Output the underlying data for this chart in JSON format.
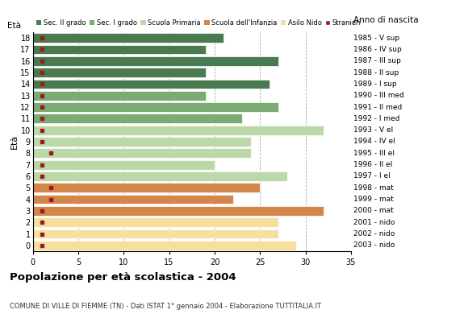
{
  "ages": [
    18,
    17,
    16,
    15,
    14,
    13,
    12,
    11,
    10,
    9,
    8,
    7,
    6,
    5,
    4,
    3,
    2,
    1,
    0
  ],
  "years": [
    "1985 - V sup",
    "1986 - IV sup",
    "1987 - III sup",
    "1988 - II sup",
    "1989 - I sup",
    "1990 - III med",
    "1991 - II med",
    "1992 - I med",
    "1993 - V el",
    "1994 - IV el",
    "1995 - III el",
    "1996 - II el",
    "1997 - I el",
    "1998 - mat",
    "1999 - mat",
    "2000 - mat",
    "2001 - nido",
    "2002 - nido",
    "2003 - nido"
  ],
  "values": [
    21,
    19,
    27,
    19,
    26,
    19,
    27,
    23,
    32,
    24,
    24,
    20,
    28,
    25,
    22,
    32,
    27,
    27,
    29
  ],
  "stranieri": [
    1,
    1,
    1,
    1,
    1,
    1,
    1,
    1,
    1,
    1,
    2,
    1,
    1,
    2,
    2,
    1,
    1,
    1,
    1
  ],
  "colors": {
    "sec2": "#4a7a50",
    "sec1": "#7baa72",
    "primaria": "#bbd9a8",
    "infanzia": "#d4854a",
    "nido": "#f5e0a0",
    "stranieri": "#9b1c1c"
  },
  "bar_colors": [
    "sec2",
    "sec2",
    "sec2",
    "sec2",
    "sec2",
    "sec1",
    "sec1",
    "sec1",
    "primaria",
    "primaria",
    "primaria",
    "primaria",
    "primaria",
    "infanzia",
    "infanzia",
    "infanzia",
    "nido",
    "nido",
    "nido"
  ],
  "legend_labels": [
    "Sec. II grado",
    "Sec. I grado",
    "Scuola Primaria",
    "Scuola dell'Infanzia",
    "Asilo Nido",
    "Stranieri"
  ],
  "legend_colors": [
    "#4a7a50",
    "#7baa72",
    "#bbd9a8",
    "#d4854a",
    "#f5e0a0",
    "#9b1c1c"
  ],
  "title": "Popolazione per età scolastica - 2004",
  "subtitle": "COMUNE DI VILLE DI FIEMME (TN) - Dati ISTAT 1° gennaio 2004 - Elaborazione TUTTITALIA.IT",
  "right_ylabel": "Anno di nascita",
  "left_ylabel": "Età",
  "xlim": [
    0,
    35
  ],
  "xticks": [
    0,
    5,
    10,
    15,
    20,
    25,
    30,
    35
  ]
}
